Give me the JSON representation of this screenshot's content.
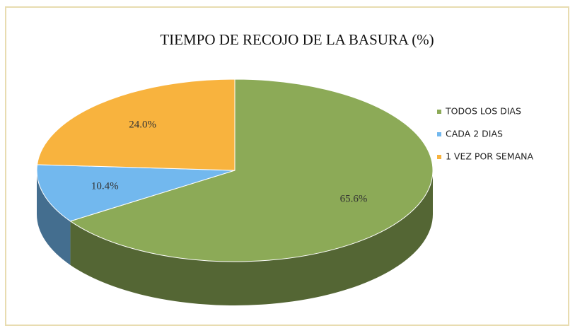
{
  "chart_data": {
    "type": "pie",
    "title": "TIEMPO DE RECOJO DE LA BASURA (%)",
    "categories": [
      "TODOS LOS DIAS",
      "CADA 2 DIAS",
      "1 VEZ POR SEMANA"
    ],
    "values": [
      65.6,
      10.4,
      24.0
    ],
    "value_labels": [
      "65.6%",
      "10.4%",
      "24.0%"
    ],
    "colors": [
      "#8caa57",
      "#72b8ee",
      "#f8b33e"
    ],
    "legend": "right"
  }
}
